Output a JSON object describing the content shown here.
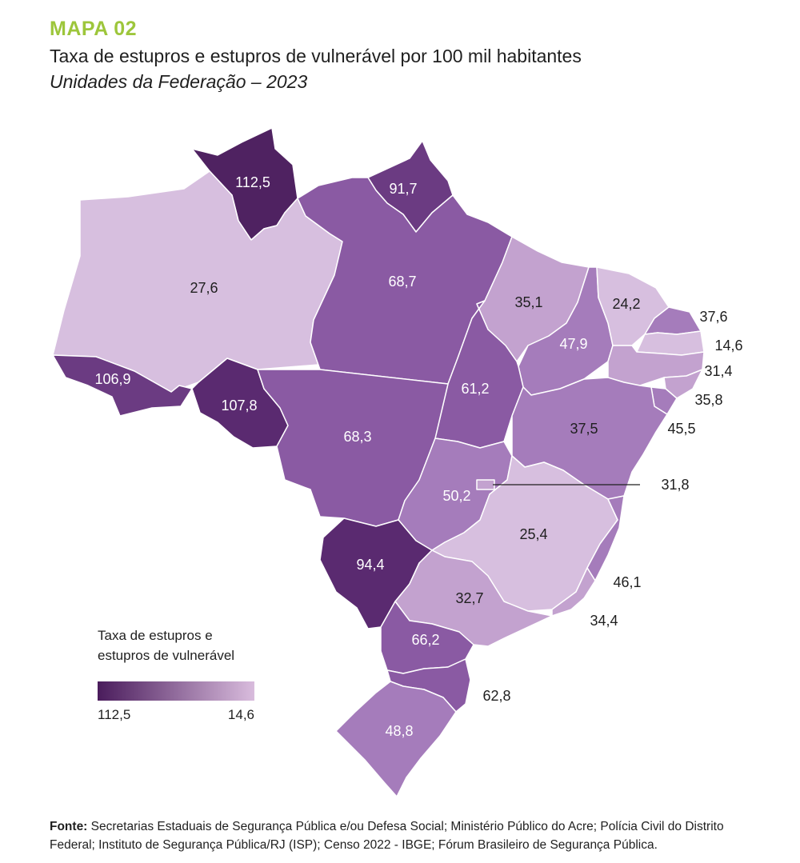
{
  "header": {
    "kicker": "MAPA 02",
    "title": "Taxa de estupros e estupros de vulnerável por 100 mil habitantes",
    "subtitle": "Unidades da Federação – 2023"
  },
  "colors": {
    "accent": "#9dc63b",
    "scale_high": "#4a1c5c",
    "scale_low": "#d9bcdd",
    "shade_1": "#4f2261",
    "shade_2": "#6b3b82",
    "shade_3": "#8a5aa3",
    "shade_4": "#a57cbb",
    "shade_5": "#c3a2cf",
    "shade_6": "#d7bfdf"
  },
  "map_data": {
    "type": "choropleth",
    "region": "Brasil",
    "regions": [
      {
        "uf": "RR",
        "value": "112,5"
      },
      {
        "uf": "AP",
        "value": "91,7"
      },
      {
        "uf": "AM",
        "value": "27,6"
      },
      {
        "uf": "PA",
        "value": "68,7"
      },
      {
        "uf": "MA",
        "value": "35,1"
      },
      {
        "uf": "CE",
        "value": "24,2"
      },
      {
        "uf": "RN",
        "value": "37,6"
      },
      {
        "uf": "PB",
        "value": "14,6"
      },
      {
        "uf": "PE",
        "value": "31,4"
      },
      {
        "uf": "AL",
        "value": "35,8"
      },
      {
        "uf": "SE",
        "value": "45,5"
      },
      {
        "uf": "PI",
        "value": "47,9"
      },
      {
        "uf": "AC",
        "value": "106,9"
      },
      {
        "uf": "RO",
        "value": "107,8"
      },
      {
        "uf": "TO",
        "value": "61,2"
      },
      {
        "uf": "MT",
        "value": "68,3"
      },
      {
        "uf": "BA",
        "value": "37,5"
      },
      {
        "uf": "DF",
        "value": "31,8"
      },
      {
        "uf": "GO",
        "value": "50,2"
      },
      {
        "uf": "MG",
        "value": "25,4"
      },
      {
        "uf": "MS",
        "value": "94,4"
      },
      {
        "uf": "ES",
        "value": "46,1"
      },
      {
        "uf": "SP",
        "value": "32,7"
      },
      {
        "uf": "RJ",
        "value": "34,4"
      },
      {
        "uf": "PR",
        "value": "66,2"
      },
      {
        "uf": "SC",
        "value": "62,8"
      },
      {
        "uf": "RS",
        "value": "48,8"
      }
    ]
  },
  "legend": {
    "title_line1": "Taxa de estupros e",
    "title_line2": "estupros de vulnerável",
    "max_label": "112,5",
    "min_label": "14,6"
  },
  "source": {
    "label": "Fonte:",
    "text": "Secretarias Estaduais de Segurança Pública e/ou Defesa Social; Ministério Público do Acre; Polícia Civil do Distrito Federal; Instituto de Segurança Pública/RJ (ISP); Censo 2022 - IBGE; Fórum Brasileiro de Segurança Pública."
  }
}
